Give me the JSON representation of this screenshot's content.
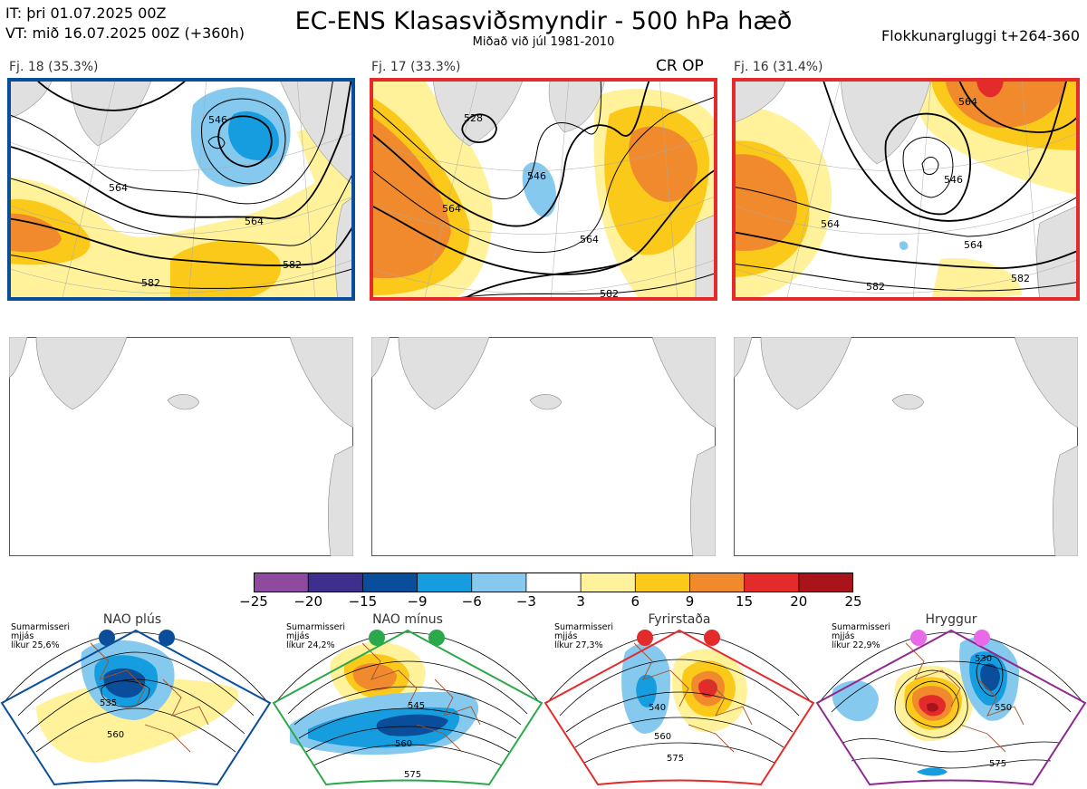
{
  "header": {
    "it_line": "IT: þri 01.07.2025 00Z",
    "vt_line": "VT: mið 16.07.2025 00Z  (+360h)",
    "title": "EC-ENS Klasasviðsmyndir - 500 hPa hæð",
    "subtitle": "Miðað við júl 1981-2010",
    "window": "Flokkunargluggi t+264-360"
  },
  "clusters": [
    {
      "label": "Fj. 18 (35.3%)",
      "border_color": "#0a4d9a",
      "extra": "",
      "contours": [
        "546",
        "564",
        "564",
        "582",
        "582"
      ]
    },
    {
      "label": "Fj. 17 (33.3%)",
      "border_color": "#e32b2b",
      "extra": "CR OP",
      "contours": [
        "528",
        "546",
        "564",
        "564",
        "582"
      ]
    },
    {
      "label": "Fj. 16 (31.4%)",
      "border_color": "#e32b2b",
      "extra": "",
      "contours": [
        "564",
        "546",
        "564",
        "564",
        "582",
        "582"
      ]
    }
  ],
  "colorbar": {
    "ticks": [
      "−25",
      "−20",
      "−15",
      "−9",
      "−6",
      "−3",
      "3",
      "6",
      "9",
      "15",
      "20",
      "25"
    ],
    "colors": [
      "#8e4a9e",
      "#3e2f8f",
      "#0a4d9a",
      "#169de0",
      "#86c9ef",
      "#ffffff",
      "#fff29a",
      "#fbc91a",
      "#f08a2c",
      "#e32b2b",
      "#a8141a"
    ]
  },
  "regimes": [
    {
      "title": "NAO plús",
      "meta": [
        "Sumarmisseri",
        "mjjás",
        "líkur 25,6%"
      ],
      "dot_color": "#0a4d9a",
      "border_color": "#0a4d9a",
      "contours": [
        "535",
        "560"
      ]
    },
    {
      "title": "NAO mínus",
      "meta": [
        "Sumarmisseri",
        "mjjás",
        "líkur 24,2%"
      ],
      "dot_color": "#2aa84a",
      "border_color": "#2aa84a",
      "contours": [
        "545",
        "560",
        "575"
      ]
    },
    {
      "title": "Fyrirstaða",
      "meta": [
        "Sumarmisseri",
        "mjjás",
        "líkur 27,3%"
      ],
      "dot_color": "#e32b2b",
      "border_color": "#e32b2b",
      "contours": [
        "540",
        "560",
        "575"
      ]
    },
    {
      "title": "Hryggur",
      "meta": [
        "Sumarmisseri",
        "mjjás",
        "líkur 22,9%"
      ],
      "dot_color": "#e86ae8",
      "border_color": "#8e2a8e",
      "contours": [
        "530",
        "550",
        "575"
      ]
    }
  ]
}
